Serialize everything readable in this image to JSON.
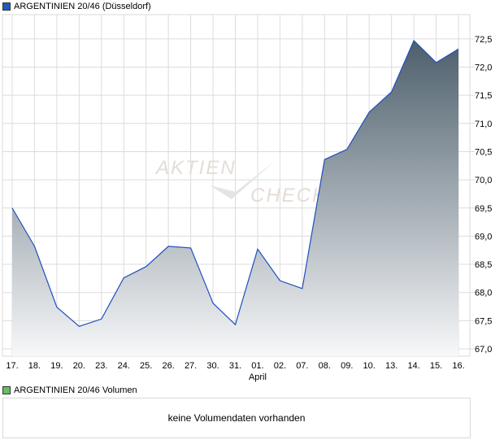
{
  "chart_data": {
    "type": "area",
    "title": "ARGENTINIEN 20/46 (Düsseldorf)",
    "categories": [
      "17.",
      "18.",
      "19.",
      "20.",
      "23.",
      "24.",
      "25.",
      "26.",
      "27.",
      "30.",
      "31.",
      "01.",
      "02.",
      "07.",
      "08.",
      "09.",
      "10.",
      "13.",
      "14.",
      "15.",
      "16."
    ],
    "month_label": "April",
    "values": [
      69.5,
      68.82,
      67.74,
      67.4,
      67.53,
      68.26,
      68.46,
      68.82,
      68.79,
      67.81,
      67.43,
      68.77,
      68.21,
      68.07,
      70.36,
      70.54,
      71.2,
      71.56,
      72.47,
      72.08,
      72.32
    ],
    "ylim": [
      66.8,
      73.0
    ],
    "yticks": [
      "67,0",
      "67,5",
      "68,0",
      "68,5",
      "69,0",
      "69,5",
      "70,0",
      "70,5",
      "71,0",
      "71,5",
      "72,0",
      "72,5"
    ],
    "ytick_values": [
      67.0,
      67.5,
      68.0,
      68.5,
      69.0,
      69.5,
      70.0,
      70.5,
      71.0,
      71.5,
      72.0,
      72.5
    ],
    "grid": true,
    "colors": {
      "line": "#1f4fbf",
      "fill_top": "#4d5f6c",
      "fill_bottom": "#f7f8f9",
      "legend": "#1f5bbf"
    }
  },
  "volume": {
    "legend": "ARGENTINIEN 20/46 Volumen",
    "message": "keine Volumendaten vorhanden",
    "color": "#5fc35f"
  },
  "watermark": {
    "line1": "AKTIEN",
    "line2": "CHECK"
  }
}
